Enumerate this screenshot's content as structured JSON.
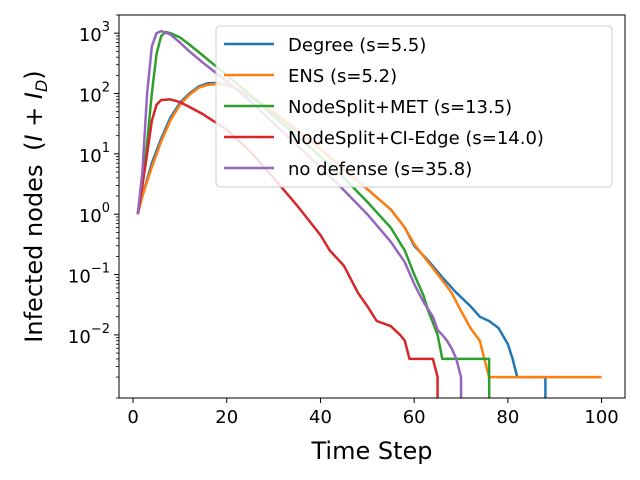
{
  "chart_data": {
    "type": "line",
    "xlabel": "Time Step",
    "ylabel": "Infected nodes",
    "ylabel_math": "(I + I_D)",
    "ylog": true,
    "xlim": [
      -3,
      105
    ],
    "ylim": [
      0.0009,
      2000
    ],
    "grid": false,
    "legend_position": "top-right",
    "x_ticks": [
      {
        "value": 0,
        "label": "0"
      },
      {
        "value": 20,
        "label": "20"
      },
      {
        "value": 40,
        "label": "40"
      },
      {
        "value": 60,
        "label": "60"
      },
      {
        "value": 80,
        "label": "80"
      },
      {
        "value": 100,
        "label": "100"
      }
    ],
    "y_ticks": [
      {
        "value": 0.01,
        "base": "10",
        "exp": "−2"
      },
      {
        "value": 0.1,
        "base": "10",
        "exp": "−1"
      },
      {
        "value": 1,
        "base": "10",
        "exp": "0"
      },
      {
        "value": 10,
        "base": "10",
        "exp": "1"
      },
      {
        "value": 100,
        "base": "10",
        "exp": "2"
      },
      {
        "value": 1000,
        "base": "10",
        "exp": "3"
      }
    ],
    "series": [
      {
        "name": "Degree (s=5.5)",
        "color": "#1f77b4",
        "points": [
          [
            1,
            1
          ],
          [
            2,
            2
          ],
          [
            4,
            7
          ],
          [
            6,
            18
          ],
          [
            8,
            40
          ],
          [
            10,
            70
          ],
          [
            12,
            100
          ],
          [
            14,
            130
          ],
          [
            16,
            148
          ],
          [
            18,
            150
          ],
          [
            20,
            140
          ],
          [
            22,
            120
          ],
          [
            25,
            90
          ],
          [
            30,
            48
          ],
          [
            35,
            24
          ],
          [
            40,
            12
          ],
          [
            45,
            5.5
          ],
          [
            50,
            2.6
          ],
          [
            55,
            1.2
          ],
          [
            58,
            0.6
          ],
          [
            60,
            0.3
          ],
          [
            63,
            0.17
          ],
          [
            66,
            0.09
          ],
          [
            69,
            0.05
          ],
          [
            72,
            0.03
          ],
          [
            74,
            0.02
          ],
          [
            76,
            0.017
          ],
          [
            78,
            0.013
          ],
          [
            80,
            0.007
          ],
          [
            81,
            0.004
          ],
          [
            82,
            0.002
          ],
          [
            86,
            0.002
          ],
          [
            88,
            0.002
          ],
          [
            88.01,
            0.0009
          ]
        ]
      },
      {
        "name": "ENS (s=5.2)",
        "color": "#ff7f0e",
        "points": [
          [
            1,
            1
          ],
          [
            2,
            2
          ],
          [
            4,
            6
          ],
          [
            6,
            16
          ],
          [
            8,
            36
          ],
          [
            10,
            65
          ],
          [
            12,
            95
          ],
          [
            14,
            125
          ],
          [
            16,
            140
          ],
          [
            18,
            143
          ],
          [
            20,
            138
          ],
          [
            22,
            120
          ],
          [
            25,
            92
          ],
          [
            30,
            50
          ],
          [
            35,
            25
          ],
          [
            40,
            12
          ],
          [
            45,
            5.5
          ],
          [
            50,
            2.6
          ],
          [
            55,
            1.2
          ],
          [
            58,
            0.6
          ],
          [
            60,
            0.32
          ],
          [
            63,
            0.16
          ],
          [
            66,
            0.08
          ],
          [
            68,
            0.05
          ],
          [
            70,
            0.025
          ],
          [
            72,
            0.013
          ],
          [
            74,
            0.008
          ],
          [
            75,
            0.004
          ],
          [
            76,
            0.002
          ],
          [
            100,
            0.002
          ]
        ]
      },
      {
        "name": "NodeSplit+MET (s=13.5)",
        "color": "#2ca02c",
        "points": [
          [
            1,
            1
          ],
          [
            2,
            3
          ],
          [
            3,
            15
          ],
          [
            4,
            100
          ],
          [
            5,
            450
          ],
          [
            6,
            900
          ],
          [
            7,
            1050
          ],
          [
            8,
            1000
          ],
          [
            10,
            850
          ],
          [
            12,
            650
          ],
          [
            15,
            420
          ],
          [
            20,
            200
          ],
          [
            25,
            95
          ],
          [
            30,
            42
          ],
          [
            35,
            20
          ],
          [
            40,
            9
          ],
          [
            45,
            4
          ],
          [
            50,
            1.6
          ],
          [
            55,
            0.6
          ],
          [
            58,
            0.25
          ],
          [
            60,
            0.1
          ],
          [
            62,
            0.045
          ],
          [
            63,
            0.025
          ],
          [
            64,
            0.016
          ],
          [
            65,
            0.01
          ],
          [
            66,
            0.004
          ],
          [
            76,
            0.004
          ],
          [
            76.01,
            0.0009
          ]
        ]
      },
      {
        "name": "NodeSplit+CI-Edge (s=14.0)",
        "color": "#d62728",
        "points": [
          [
            1,
            1
          ],
          [
            2,
            3
          ],
          [
            3,
            10
          ],
          [
            4,
            35
          ],
          [
            5,
            65
          ],
          [
            6,
            78
          ],
          [
            8,
            80
          ],
          [
            10,
            72
          ],
          [
            12,
            60
          ],
          [
            15,
            45
          ],
          [
            20,
            25
          ],
          [
            25,
            11
          ],
          [
            30,
            4
          ],
          [
            35,
            1.4
          ],
          [
            40,
            0.45
          ],
          [
            42,
            0.25
          ],
          [
            45,
            0.14
          ],
          [
            48,
            0.05
          ],
          [
            50,
            0.03
          ],
          [
            52,
            0.017
          ],
          [
            55,
            0.014
          ],
          [
            57,
            0.01
          ],
          [
            58,
            0.008
          ],
          [
            59,
            0.004
          ],
          [
            64,
            0.004
          ],
          [
            65,
            0.002
          ],
          [
            65.01,
            0.0009
          ]
        ]
      },
      {
        "name": "no defense (s=35.8)",
        "color": "#9467bd",
        "points": [
          [
            1,
            1
          ],
          [
            2,
            5
          ],
          [
            3,
            100
          ],
          [
            4,
            600
          ],
          [
            5,
            1000
          ],
          [
            6,
            1080
          ],
          [
            8,
            950
          ],
          [
            10,
            700
          ],
          [
            12,
            500
          ],
          [
            15,
            320
          ],
          [
            20,
            160
          ],
          [
            25,
            75
          ],
          [
            30,
            32
          ],
          [
            35,
            14
          ],
          [
            40,
            6
          ],
          [
            45,
            2.5
          ],
          [
            50,
            1
          ],
          [
            55,
            0.35
          ],
          [
            58,
            0.16
          ],
          [
            60,
            0.07
          ],
          [
            62,
            0.035
          ],
          [
            64,
            0.02
          ],
          [
            65,
            0.012
          ],
          [
            66,
            0.01
          ],
          [
            67,
            0.008
          ],
          [
            68,
            0.006
          ],
          [
            69,
            0.004
          ],
          [
            70,
            0.002
          ],
          [
            70.01,
            0.0009
          ]
        ]
      }
    ]
  }
}
